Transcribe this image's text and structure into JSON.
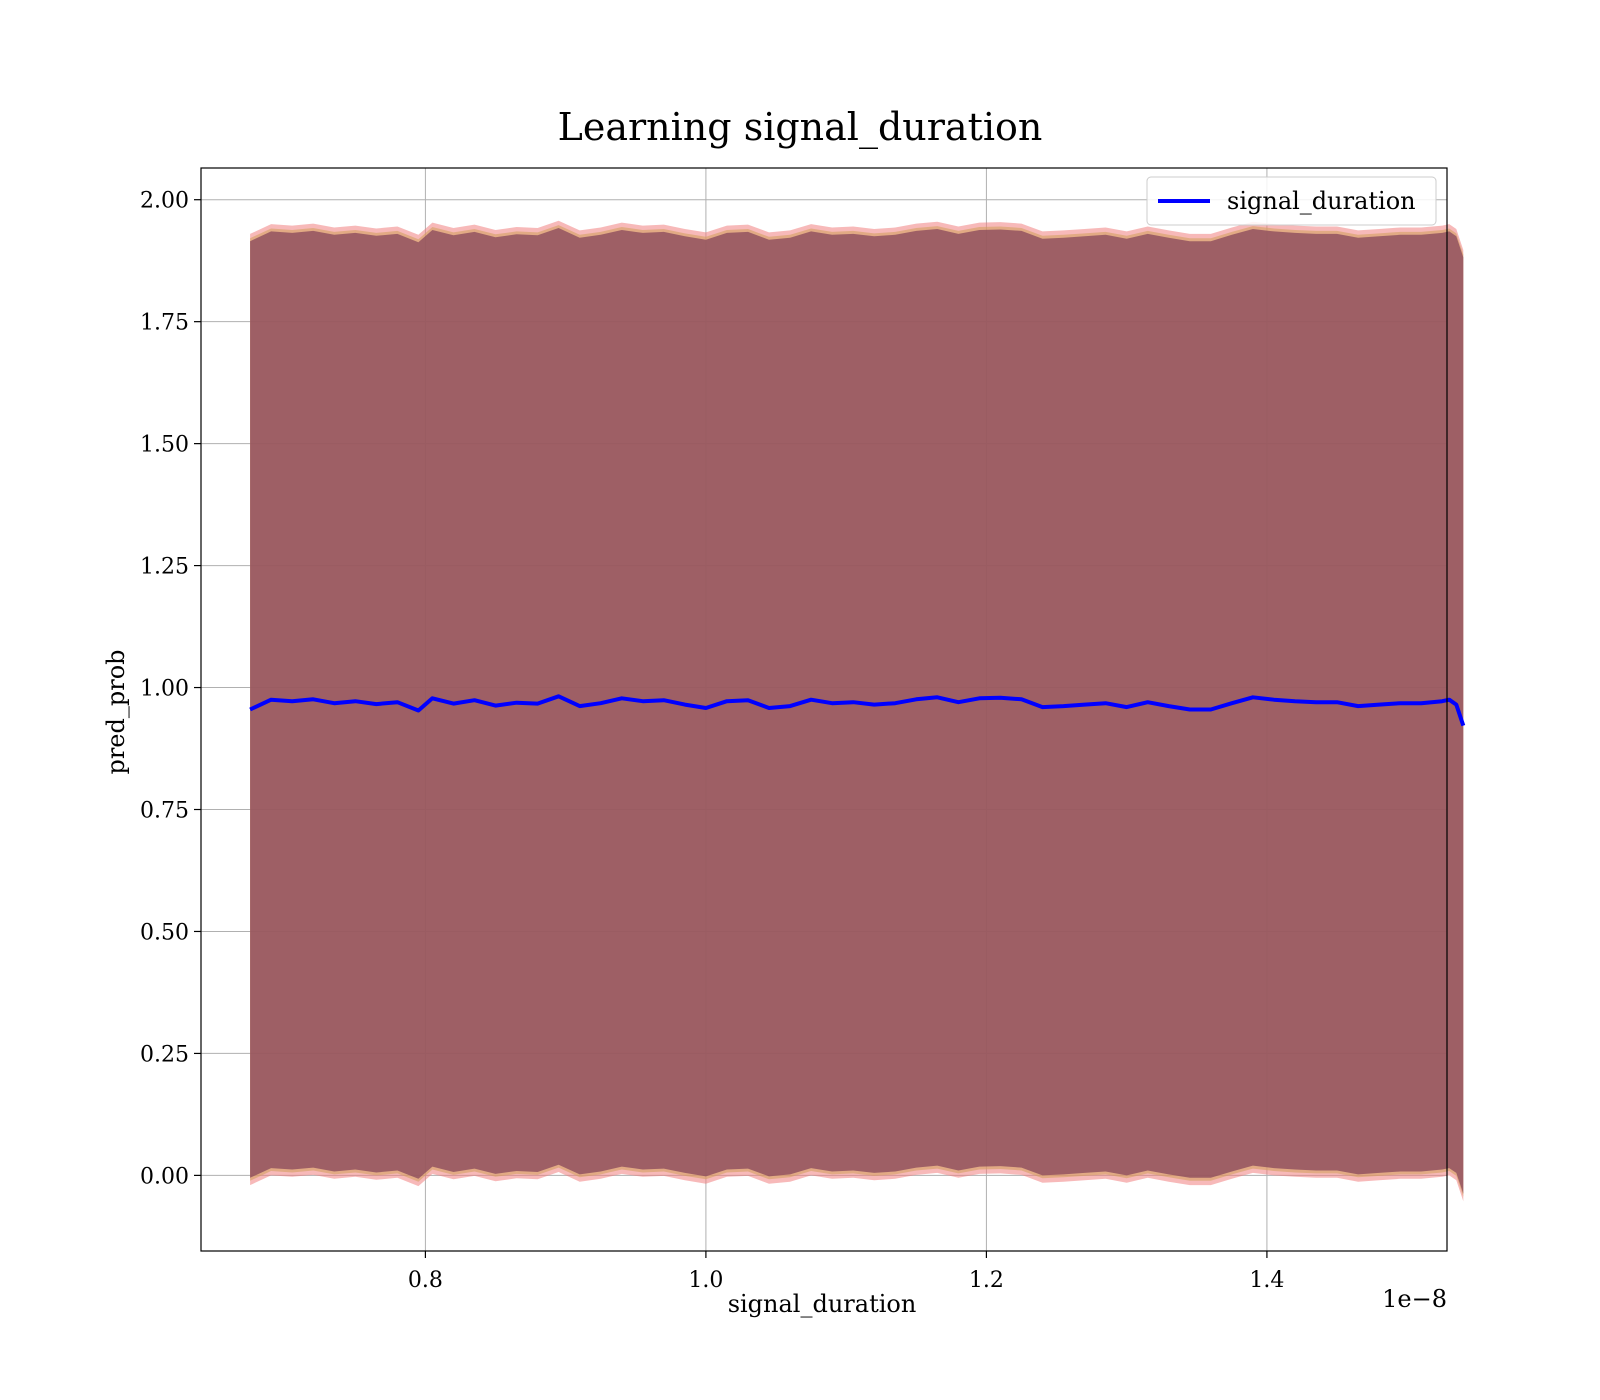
{
  "chart_data": {
    "type": "line",
    "title": "Learning signal_duration",
    "xlabel": "signal_duration",
    "ylabel": "pred_prob",
    "x_offset_text": "1e−8",
    "xlim": [
      0.64,
      1.5284
    ],
    "ylim": [
      -0.155,
      2.065
    ],
    "xticks": [
      0.8,
      1.0,
      1.2,
      1.4
    ],
    "xtick_labels": [
      "0.8",
      "1.0",
      "1.2",
      "1.4"
    ],
    "yticks": [
      0.0,
      0.25,
      0.5,
      0.75,
      1.0,
      1.25,
      1.5,
      1.75,
      2.0
    ],
    "ytick_labels": [
      "0.00",
      "0.25",
      "0.50",
      "0.75",
      "1.00",
      "1.25",
      "1.50",
      "1.75",
      "2.00"
    ],
    "grid": true,
    "legend": {
      "position": "top-right",
      "entries": [
        "signal_duration"
      ]
    },
    "colors": {
      "line": "#0000ff",
      "band_inner": "#8b4a5c",
      "band_outer": "#f08080",
      "band_mid": "#d4a060",
      "grid": "#b0b0b0"
    },
    "series": [
      {
        "name": "signal_duration",
        "x": [
          0.675,
          0.69,
          0.705,
          0.72,
          0.735,
          0.75,
          0.765,
          0.78,
          0.795,
          0.805,
          0.82,
          0.835,
          0.85,
          0.865,
          0.88,
          0.895,
          0.91,
          0.925,
          0.94,
          0.955,
          0.97,
          0.985,
          1.0,
          1.015,
          1.03,
          1.045,
          1.06,
          1.075,
          1.09,
          1.105,
          1.12,
          1.135,
          1.15,
          1.165,
          1.18,
          1.195,
          1.21,
          1.225,
          1.24,
          1.255,
          1.27,
          1.285,
          1.3,
          1.315,
          1.33,
          1.345,
          1.36,
          1.375,
          1.39,
          1.405,
          1.42,
          1.435,
          1.45,
          1.465,
          1.48,
          1.495,
          1.51,
          1.525,
          1.53,
          1.535,
          1.54
        ],
        "y": [
          0.955,
          0.975,
          0.972,
          0.976,
          0.968,
          0.972,
          0.966,
          0.97,
          0.953,
          0.978,
          0.967,
          0.974,
          0.963,
          0.969,
          0.967,
          0.982,
          0.962,
          0.968,
          0.978,
          0.972,
          0.974,
          0.965,
          0.958,
          0.972,
          0.974,
          0.958,
          0.962,
          0.975,
          0.968,
          0.97,
          0.965,
          0.968,
          0.976,
          0.98,
          0.97,
          0.978,
          0.979,
          0.976,
          0.96,
          0.962,
          0.965,
          0.968,
          0.96,
          0.97,
          0.962,
          0.955,
          0.955,
          0.968,
          0.98,
          0.975,
          0.972,
          0.97,
          0.97,
          0.962,
          0.965,
          0.968,
          0.968,
          0.972,
          0.975,
          0.965,
          0.922
        ],
        "band_half_width": 0.96
      }
    ]
  }
}
